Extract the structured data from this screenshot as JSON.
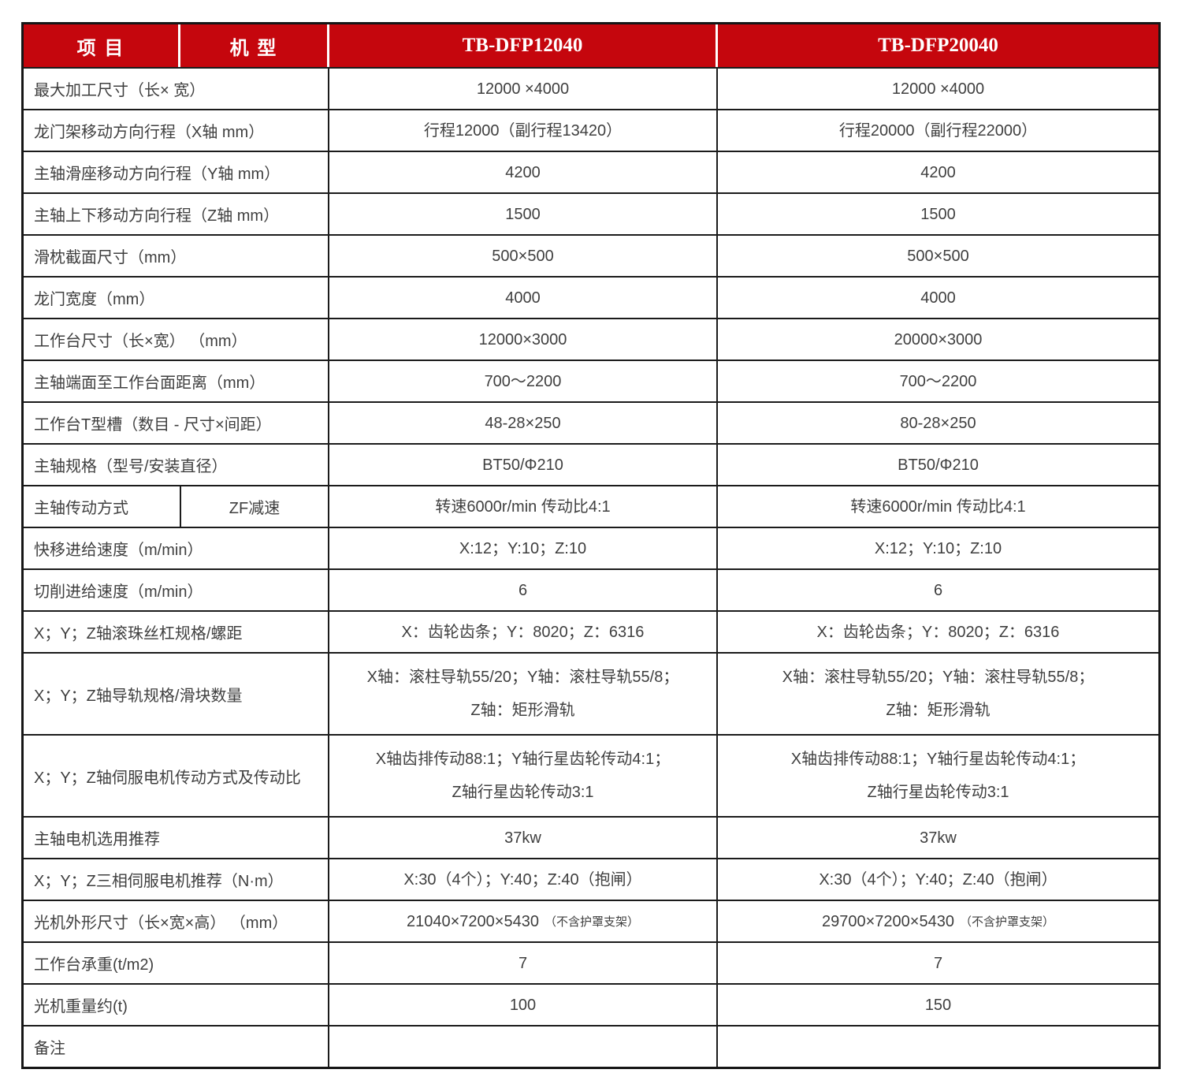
{
  "colors": {
    "header_bg": "#C5060D",
    "header_text": "#FFFFFF",
    "body_text": "#3F3F3F",
    "border": "#1B1B1B"
  },
  "header": {
    "col_item": "项  目",
    "col_model": "机  型",
    "models": [
      "TB-DFP12040",
      "TB-DFP20040"
    ]
  },
  "rows": [
    {
      "label": "最大加工尺寸（长× 宽）",
      "values": [
        "12000 ×4000",
        "12000 ×4000"
      ]
    },
    {
      "label": "龙门架移动方向行程（X轴 mm）",
      "values": [
        "行程12000（副行程13420）",
        "行程20000（副行程22000）"
      ]
    },
    {
      "label": "主轴滑座移动方向行程（Y轴 mm）",
      "values": [
        "4200",
        "4200"
      ]
    },
    {
      "label": "主轴上下移动方向行程（Z轴 mm）",
      "values": [
        "1500",
        "1500"
      ]
    },
    {
      "label": "滑枕截面尺寸（mm）",
      "values": [
        "500×500",
        "500×500"
      ]
    },
    {
      "label": "龙门宽度（mm）",
      "values": [
        "4000",
        "4000"
      ]
    },
    {
      "label": "工作台尺寸（长×宽） （mm）",
      "values": [
        "12000×3000",
        "20000×3000"
      ]
    },
    {
      "label": "主轴端面至工作台面距离（mm）",
      "values": [
        "700～2200",
        "700～2200"
      ]
    },
    {
      "label": "工作台T型槽（数目 - 尺寸×间距）",
      "values": [
        "48-28×250",
        "80-28×250"
      ]
    },
    {
      "label": "主轴规格（型号/安装直径）",
      "values": [
        "BT50/Φ210",
        "BT50/Φ210"
      ]
    },
    {
      "label": "主轴传动方式",
      "sublabel": "ZF减速",
      "values": [
        "转速6000r/min 传动比4:1",
        "转速6000r/min 传动比4:1"
      ]
    },
    {
      "label": "快移进给速度（m/min）",
      "values": [
        "X:12；Y:10；Z:10",
        "X:12；Y:10；Z:10"
      ]
    },
    {
      "label": "切削进给速度（m/min）",
      "values": [
        "6",
        "6"
      ]
    },
    {
      "label": "X；Y；Z轴滚珠丝杠规格/螺距",
      "values": [
        "X：齿轮齿条；Y：8020；Z：6316",
        "X：齿轮齿条；Y：8020；Z：6316"
      ]
    },
    {
      "label": "X；Y；Z轴导轨规格/滑块数量",
      "lines": [
        [
          "X轴：滚柱导轨55/20；Y轴：滚柱导轨55/8；",
          "Z轴：矩形滑轨"
        ],
        [
          "X轴：滚柱导轨55/20；Y轴：滚柱导轨55/8；",
          "Z轴：矩形滑轨"
        ]
      ]
    },
    {
      "label": "X；Y；Z轴伺服电机传动方式及传动比",
      "lines": [
        [
          "X轴齿排传动88:1；Y轴行星齿轮传动4:1；",
          "Z轴行星齿轮传动3:1"
        ],
        [
          "X轴齿排传动88:1；Y轴行星齿轮传动4:1；",
          "Z轴行星齿轮传动3:1"
        ]
      ]
    },
    {
      "label": "主轴电机选用推荐",
      "values": [
        "37kw",
        "37kw"
      ]
    },
    {
      "label": "X；Y；Z三相伺服电机推荐（N·m）",
      "values": [
        "X:30（4个）；Y:40；Z:40（抱闸）",
        "X:30（4个）；Y:40；Z:40（抱闸）"
      ]
    },
    {
      "label": "光机外形尺寸（长×宽×高） （mm）",
      "values": [
        "21040×7200×5430",
        "29700×7200×5430"
      ],
      "suffix": "（不含护罩支架）"
    },
    {
      "label": "工作台承重(t/m2)",
      "values": [
        "7",
        "7"
      ]
    },
    {
      "label": "光机重量约(t)",
      "values": [
        "100",
        "150"
      ]
    },
    {
      "label": "备注",
      "values": [
        "",
        ""
      ]
    }
  ]
}
